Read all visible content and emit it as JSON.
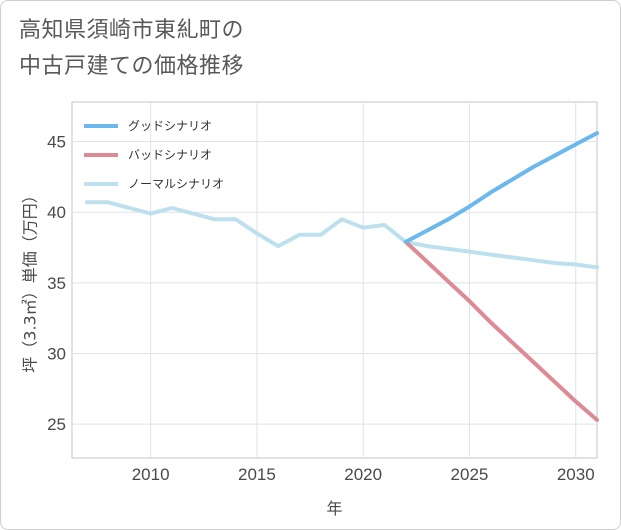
{
  "title": {
    "line1": "高知県須崎市東糺町の",
    "line2": "中古戸建ての価格推移"
  },
  "chart_data": {
    "type": "line",
    "xlabel": "年",
    "ylabel": "坪（3.3㎡）単価（万円）",
    "xlim": [
      2006.3,
      2031
    ],
    "ylim": [
      22.6,
      47.8
    ],
    "x_ticks": [
      2010,
      2015,
      2020,
      2025,
      2030
    ],
    "y_ticks": [
      25,
      30,
      35,
      40,
      45
    ],
    "grid": true,
    "legend_position": "top-left",
    "series": [
      {
        "name": "グッドシナリオ",
        "color": "#6bb8ee",
        "x": [
          2022,
          2023,
          2024,
          2025,
          2026,
          2027,
          2028,
          2029,
          2030,
          2031
        ],
        "y": [
          37.9,
          38.7,
          39.5,
          40.4,
          41.4,
          42.3,
          43.2,
          44.0,
          44.8,
          45.6
        ]
      },
      {
        "name": "バッドシナリオ",
        "color": "#dd8a94",
        "x": [
          2022,
          2023,
          2024,
          2025,
          2026,
          2027,
          2028,
          2029,
          2030,
          2031
        ],
        "y": [
          37.9,
          36.5,
          35.1,
          33.7,
          32.2,
          30.8,
          29.4,
          28.0,
          26.6,
          25.3
        ]
      },
      {
        "name": "ノーマルシナリオ",
        "color": "#bde0ee",
        "x": [
          2007,
          2008,
          2009,
          2010,
          2011,
          2012,
          2013,
          2014,
          2015,
          2016,
          2017,
          2018,
          2019,
          2020,
          2021,
          2022,
          2023,
          2024,
          2025,
          2026,
          2027,
          2028,
          2029,
          2030,
          2031
        ],
        "y": [
          40.7,
          40.7,
          40.3,
          39.9,
          40.3,
          39.9,
          39.5,
          39.5,
          38.5,
          37.6,
          38.4,
          38.4,
          39.5,
          38.9,
          39.1,
          37.9,
          37.6,
          37.4,
          37.2,
          37.0,
          36.8,
          36.6,
          36.4,
          36.3,
          36.1
        ]
      }
    ]
  }
}
